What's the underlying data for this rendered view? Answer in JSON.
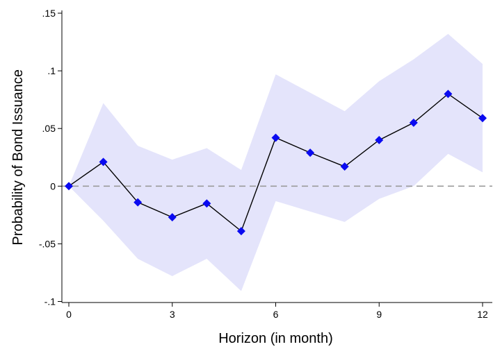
{
  "chart_data": {
    "type": "line",
    "title": "",
    "xlabel": "Horizon (in month)",
    "ylabel": "Probability of Bond Issuance",
    "xlim": [
      0,
      12
    ],
    "ylim": [
      -0.1,
      0.15
    ],
    "x_ticks": [
      {
        "value": 0,
        "label": "0"
      },
      {
        "value": 3,
        "label": "3"
      },
      {
        "value": 6,
        "label": "6"
      },
      {
        "value": 9,
        "label": "9"
      },
      {
        "value": 12,
        "label": "12"
      }
    ],
    "y_ticks": [
      {
        "value": -0.1,
        "label": "-.1"
      },
      {
        "value": -0.05,
        "label": "-.05"
      },
      {
        "value": 0,
        "label": "0"
      },
      {
        "value": 0.05,
        "label": ".05"
      },
      {
        "value": 0.1,
        "label": ".1"
      },
      {
        "value": 0.15,
        "label": ".15"
      }
    ],
    "reference_line": {
      "y": 0,
      "style": "dashed"
    },
    "grid": false,
    "legend": "none",
    "x": [
      0,
      1,
      2,
      3,
      4,
      5,
      6,
      7,
      8,
      9,
      10,
      11,
      12
    ],
    "series": [
      {
        "values": [
          0,
          0.021,
          -0.014,
          -0.027,
          -0.015,
          -0.039,
          0.042,
          0.029,
          0.017,
          0.04,
          0.055,
          0.08,
          0.059
        ],
        "lower": [
          0,
          -0.03,
          -0.063,
          -0.078,
          -0.063,
          -0.091,
          -0.013,
          -0.022,
          -0.031,
          -0.011,
          0.0,
          0.028,
          0.012
        ],
        "upper": [
          0,
          0.072,
          0.035,
          0.023,
          0.033,
          0.014,
          0.097,
          0.081,
          0.065,
          0.091,
          0.11,
          0.132,
          0.106
        ]
      }
    ],
    "colors": {
      "band": "#e4e4fb",
      "line": "#000000",
      "marker": "#0a0af0",
      "zero_line": "#9a9a9a"
    }
  }
}
